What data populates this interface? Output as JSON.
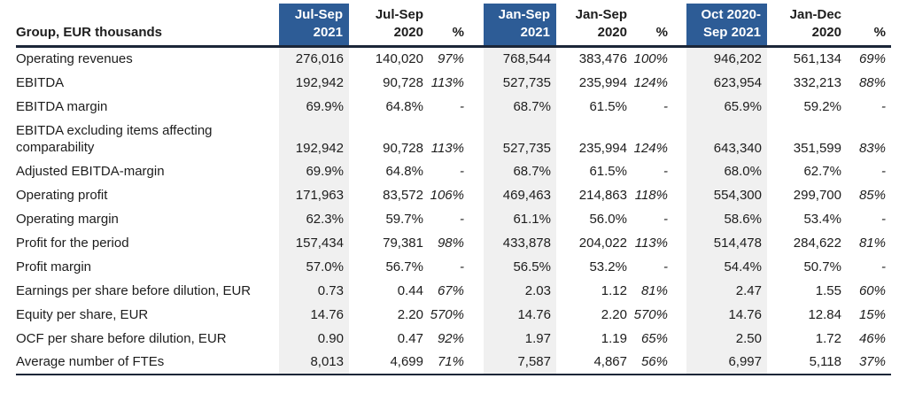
{
  "header": {
    "row_label": "Group, EUR thousands",
    "columns": [
      {
        "line1": "Jul-Sep",
        "line2": "2021",
        "highlight": true
      },
      {
        "line1": "Jul-Sep",
        "line2": "2020",
        "highlight": false
      },
      {
        "line1": "",
        "line2": "%",
        "highlight": false
      },
      {
        "line1": "Jan-Sep",
        "line2": "2021",
        "highlight": true
      },
      {
        "line1": "Jan-Sep",
        "line2": "2020",
        "highlight": false
      },
      {
        "line1": "",
        "line2": "%",
        "highlight": false
      },
      {
        "line1": "Oct 2020-",
        "line2": "Sep 2021",
        "highlight": true
      },
      {
        "line1": "Jan-Dec",
        "line2": "2020",
        "highlight": false
      },
      {
        "line1": "",
        "line2": "%",
        "highlight": false
      }
    ]
  },
  "rows": [
    {
      "label": "Operating revenues",
      "two_line": false,
      "values": [
        "276,016",
        "140,020",
        "97%",
        "768,544",
        "383,476",
        "100%",
        "946,202",
        "561,134",
        "69%"
      ]
    },
    {
      "label": "EBITDA",
      "two_line": false,
      "values": [
        "192,942",
        "90,728",
        "113%",
        "527,735",
        "235,994",
        "124%",
        "623,954",
        "332,213",
        "88%"
      ]
    },
    {
      "label": "EBITDA margin",
      "two_line": false,
      "values": [
        "69.9%",
        "64.8%",
        "-",
        "68.7%",
        "61.5%",
        "-",
        "65.9%",
        "59.2%",
        "-"
      ]
    },
    {
      "label": "EBITDA excluding items affecting comparability",
      "two_line": true,
      "values": [
        "192,942",
        "90,728",
        "113%",
        "527,735",
        "235,994",
        "124%",
        "643,340",
        "351,599",
        "83%"
      ]
    },
    {
      "label": "Adjusted EBITDA-margin",
      "two_line": false,
      "values": [
        "69.9%",
        "64.8%",
        "-",
        "68.7%",
        "61.5%",
        "-",
        "68.0%",
        "62.7%",
        "-"
      ]
    },
    {
      "label": "Operating profit",
      "two_line": false,
      "values": [
        "171,963",
        "83,572",
        "106%",
        "469,463",
        "214,863",
        "118%",
        "554,300",
        "299,700",
        "85%"
      ]
    },
    {
      "label": "Operating margin",
      "two_line": false,
      "values": [
        "62.3%",
        "59.7%",
        "-",
        "61.1%",
        "56.0%",
        "-",
        "58.6%",
        "53.4%",
        "-"
      ]
    },
    {
      "label": "Profit for the period",
      "two_line": false,
      "values": [
        "157,434",
        "79,381",
        "98%",
        "433,878",
        "204,022",
        "113%",
        "514,478",
        "284,622",
        "81%"
      ]
    },
    {
      "label": "Profit margin",
      "two_line": false,
      "values": [
        "57.0%",
        "56.7%",
        "-",
        "56.5%",
        "53.2%",
        "-",
        "54.4%",
        "50.7%",
        "-"
      ]
    },
    {
      "label": "Earnings per share before dilution, EUR",
      "two_line": false,
      "values": [
        "0.73",
        "0.44",
        "67%",
        "2.03",
        "1.12",
        "81%",
        "2.47",
        "1.55",
        "60%"
      ]
    },
    {
      "label": "Equity per share, EUR",
      "two_line": false,
      "values": [
        "14.76",
        "2.20",
        "570%",
        "14.76",
        "2.20",
        "570%",
        "14.76",
        "12.84",
        "15%"
      ]
    },
    {
      "label": "OCF per share before dilution, EUR",
      "two_line": false,
      "values": [
        "0.90",
        "0.47",
        "92%",
        "1.97",
        "1.19",
        "65%",
        "2.50",
        "1.72",
        "46%"
      ]
    },
    {
      "label": "Average number of FTEs",
      "two_line": false,
      "values": [
        "8,013",
        "4,699",
        "71%",
        "7,587",
        "4,867",
        "56%",
        "6,997",
        "5,118",
        "37%"
      ]
    }
  ],
  "colors": {
    "highlight_header_bg": "#2D5C96",
    "highlight_header_text": "#FFFFFF",
    "shaded_column_bg": "#F0F0F0",
    "rule": "#1B2638",
    "text": "#1D1D1D"
  }
}
